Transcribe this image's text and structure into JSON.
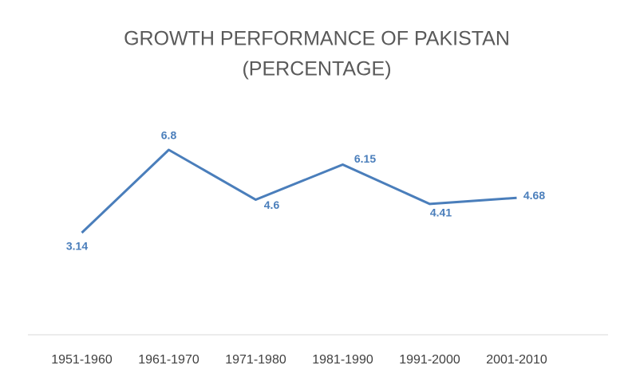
{
  "chart_data": {
    "type": "line",
    "title": [
      "GROWTH PERFORMANCE OF PAKISTAN",
      "(PERCENTAGE)"
    ],
    "categories": [
      "1951-1960",
      "1961-1970",
      "1971-1980",
      "1981-1990",
      "1991-2000",
      "2001-2010"
    ],
    "values": [
      3.14,
      6.8,
      4.6,
      6.15,
      4.41,
      4.68
    ],
    "color": "#4a7ebb"
  }
}
